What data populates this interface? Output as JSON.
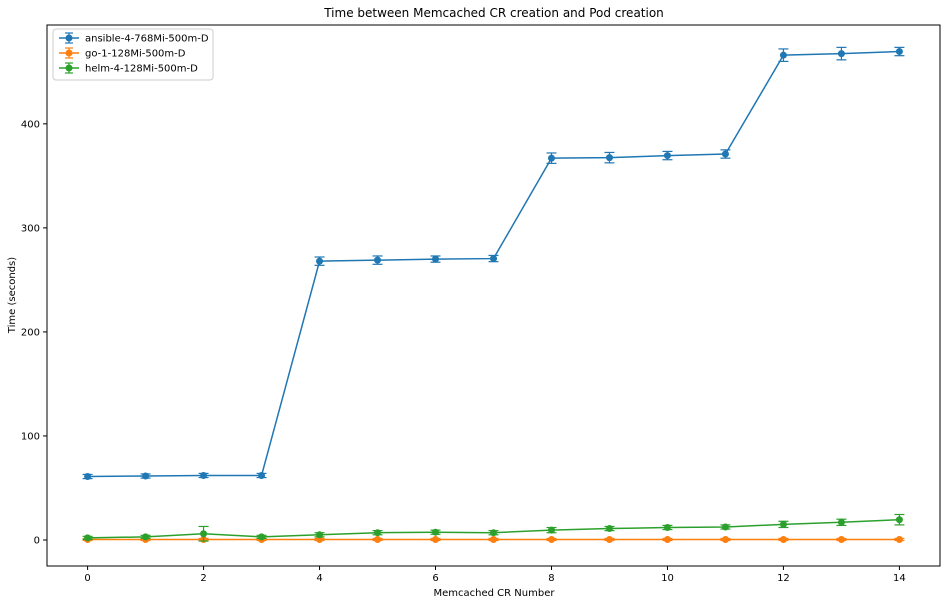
{
  "chart_data": {
    "type": "line",
    "title": "Time between Memcached CR creation and Pod creation",
    "xlabel": "Memcached CR Number",
    "ylabel": "Time (seconds)",
    "xlim": [
      -0.7,
      14.7
    ],
    "ylim": [
      -25,
      495
    ],
    "x_ticks": [
      0,
      2,
      4,
      6,
      8,
      10,
      12,
      14
    ],
    "y_ticks": [
      0,
      100,
      200,
      300,
      400
    ],
    "grid": false,
    "legend_position": "upper-left",
    "x": [
      0,
      1,
      2,
      3,
      4,
      5,
      6,
      7,
      8,
      9,
      10,
      11,
      12,
      13,
      14
    ],
    "series": [
      {
        "name": "ansible-4-768Mi-500m-D",
        "color": "#1f77b4",
        "values": [
          61,
          61.5,
          62,
          62,
          268,
          269,
          270,
          270.5,
          367,
          367.5,
          369.5,
          371,
          466,
          467.5,
          469.5
        ],
        "errors": [
          2,
          2,
          2,
          2,
          4,
          4,
          3,
          3,
          5,
          5,
          4,
          4,
          6,
          6,
          4
        ]
      },
      {
        "name": "go-1-128Mi-500m-D",
        "color": "#ff7f0e",
        "values": [
          0.5,
          0.5,
          0.5,
          0.5,
          0.5,
          0.5,
          0.5,
          0.5,
          0.5,
          0.5,
          0.5,
          0.5,
          0.5,
          0.5,
          0.5
        ],
        "errors": [
          1,
          1,
          1,
          1,
          1,
          1,
          1,
          1,
          1,
          1,
          1,
          1,
          1,
          1,
          1
        ]
      },
      {
        "name": "helm-4-128Mi-500m-D",
        "color": "#2ca02c",
        "values": [
          2,
          3,
          6,
          3,
          5,
          7,
          7.5,
          7,
          9.5,
          11,
          12,
          12.5,
          15,
          17,
          19.5
        ],
        "errors": [
          1.5,
          1.5,
          7,
          1.5,
          2,
          2,
          2,
          2,
          2.5,
          2,
          2,
          2,
          3,
          3,
          5
        ]
      }
    ]
  }
}
